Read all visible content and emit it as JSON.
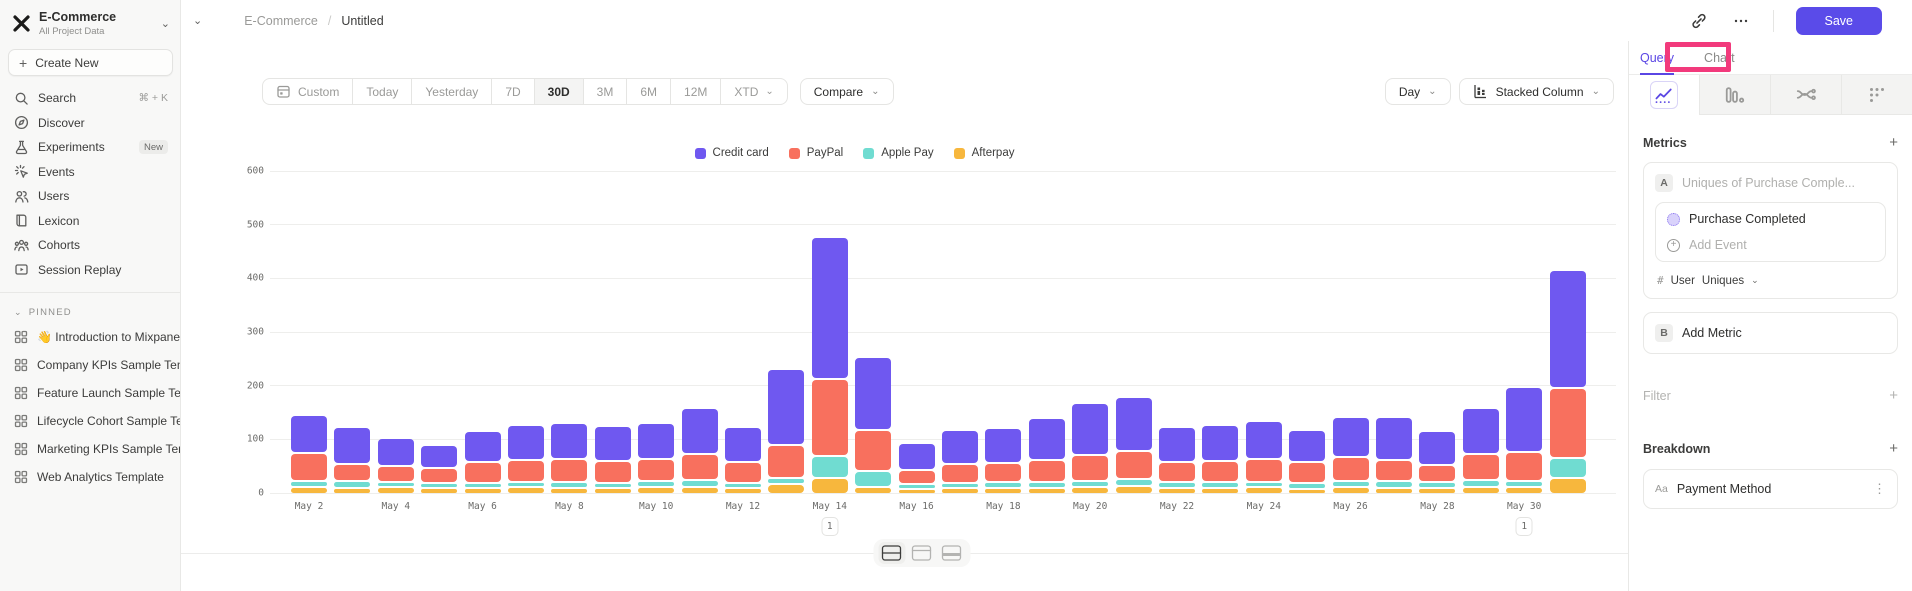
{
  "colors": {
    "accent": "#5a46e4",
    "save_button": "#5a4be9",
    "annotation_box": "#f23a7c",
    "credit_card": "#6f58f0",
    "paypal": "#f8705e",
    "apple_pay": "#70dcd1",
    "afterpay": "#f7b73d"
  },
  "sidebar": {
    "project": {
      "name": "E-Commerce",
      "subtitle": "All Project Data",
      "logo_icon": "mixpanel-logo",
      "chevron_icon": "chevron-down-icon"
    },
    "create_new_label": "Create New",
    "nav": [
      {
        "label": "Search",
        "icon": "search-icon",
        "shortcut": "⌘ + K"
      },
      {
        "label": "Discover",
        "icon": "compass-icon"
      },
      {
        "label": "Experiments",
        "icon": "flask-icon",
        "badge": "New"
      },
      {
        "label": "Events",
        "icon": "events-sparkle-icon"
      },
      {
        "label": "Users",
        "icon": "users-icon"
      },
      {
        "label": "Lexicon",
        "icon": "book-icon"
      },
      {
        "label": "Cohorts",
        "icon": "cohorts-icon"
      },
      {
        "label": "Session Replay",
        "icon": "session-replay-icon"
      }
    ],
    "pinned_header": "PINNED",
    "pinned": [
      {
        "label": "👋 Introduction to Mixpanel Bo",
        "icon": "board-grid-icon"
      },
      {
        "label": "Company KPIs Sample Templat",
        "icon": "board-grid-icon"
      },
      {
        "label": "Feature Launch Sample Templa",
        "icon": "board-grid-icon"
      },
      {
        "label": "Lifecycle Cohort Sample Temp",
        "icon": "board-grid-icon"
      },
      {
        "label": "Marketing KPIs Sample Templat",
        "icon": "board-grid-icon"
      },
      {
        "label": "Web Analytics Template",
        "icon": "board-grid-icon"
      }
    ]
  },
  "topbar": {
    "breadcrumb": {
      "root": "E-Commerce",
      "separator": "/",
      "current": "Untitled"
    },
    "actions": {
      "link_icon": "link-icon",
      "more_icon": "ellipsis-icon",
      "save_label": "Save"
    }
  },
  "toolbar": {
    "ranges": [
      {
        "label": "Custom",
        "icon": "calendar-icon"
      },
      {
        "label": "Today"
      },
      {
        "label": "Yesterday"
      },
      {
        "label": "7D"
      },
      {
        "label": "30D",
        "active": true
      },
      {
        "label": "3M"
      },
      {
        "label": "6M"
      },
      {
        "label": "12M"
      },
      {
        "label": "XTD",
        "dropdown": true
      }
    ],
    "compare_label": "Compare",
    "granularity_label": "Day",
    "chart_type_label": "Stacked Column",
    "chart_type_icon": "stacked-column-icon"
  },
  "layout_toggle_icons": [
    {
      "icon": "layout-split-rows-icon",
      "active": true
    },
    {
      "icon": "layout-top-bar-icon",
      "active": false
    },
    {
      "icon": "layout-bottom-half-icon",
      "active": false
    }
  ],
  "right_panel": {
    "tabs": [
      {
        "label": "Query",
        "active": true
      },
      {
        "label": "Chart",
        "active": false
      }
    ],
    "report_tabs": [
      {
        "icon": "insights-chart-icon",
        "active": true
      },
      {
        "icon": "funnels-bars-icon",
        "active": false
      },
      {
        "icon": "flows-icon",
        "active": false
      },
      {
        "icon": "retention-dots-icon",
        "active": false
      }
    ],
    "metrics": {
      "title": "Metrics",
      "add_icon": "plus-icon",
      "metric_a": {
        "badge": "A",
        "placeholder": "Uniques of Purchase Comple...",
        "event_name": "Purchase Completed",
        "event_icon": "event-dot-icon",
        "add_event_label": "Add Event",
        "count_symbol": "#",
        "entity": "User",
        "aggregation": "Uniques"
      },
      "metric_b": {
        "badge": "B",
        "label": "Add Metric"
      }
    },
    "filter": {
      "title": "Filter",
      "add_icon": "plus-icon"
    },
    "breakdown": {
      "title": "Breakdown",
      "add_icon": "plus-icon",
      "item": {
        "badge": "Aa",
        "label": "Payment Method",
        "menu_icon": "kebab-icon"
      }
    }
  },
  "chart_data": {
    "type": "bar",
    "stacked": true,
    "title": "",
    "xlabel": "",
    "ylabel": "",
    "ylim": [
      0,
      600
    ],
    "yticks": [
      0,
      100,
      200,
      300,
      400,
      500,
      600
    ],
    "grid": true,
    "legend_position": "top",
    "categories": [
      "May 2",
      "May 3",
      "May 4",
      "May 5",
      "May 6",
      "May 7",
      "May 8",
      "May 9",
      "May 10",
      "May 11",
      "May 12",
      "May 13",
      "May 14",
      "May 15",
      "May 16",
      "May 17",
      "May 18",
      "May 19",
      "May 20",
      "May 21",
      "May 22",
      "May 23",
      "May 24",
      "May 25",
      "May 26",
      "May 27",
      "May 28",
      "May 29",
      "May 30",
      "May 31"
    ],
    "x_tick_labels_shown": [
      "May 2",
      "May 4",
      "May 6",
      "May 8",
      "May 10",
      "May 12",
      "May 14",
      "May 16",
      "May 18",
      "May 20",
      "May 22",
      "May 24",
      "May 26",
      "May 28",
      "May 30"
    ],
    "stack_order_bottom_to_top": [
      "Afterpay",
      "Apple Pay",
      "PayPal",
      "Credit card"
    ],
    "series": [
      {
        "name": "Credit card",
        "color": "#6f58f0",
        "values": [
          71,
          68,
          52,
          42,
          58,
          65,
          66,
          64,
          67,
          85,
          65,
          140,
          263,
          135,
          51,
          63,
          64,
          77,
          96,
          100,
          64,
          66,
          70,
          60,
          75,
          79,
          63,
          85,
          119,
          220
        ]
      },
      {
        "name": "PayPal",
        "color": "#f8705e",
        "values": [
          52,
          32,
          30,
          28,
          38,
          40,
          42,
          40,
          41,
          48,
          38,
          62,
          143,
          75,
          25,
          35,
          36,
          42,
          48,
          52,
          38,
          40,
          42,
          38,
          44,
          40,
          32,
          48,
          55,
          130
        ]
      },
      {
        "name": "Apple Pay",
        "color": "#70dcd1",
        "values": [
          9,
          11,
          8,
          9,
          8,
          9,
          10,
          9,
          10,
          11,
          9,
          10,
          40,
          30,
          8,
          9,
          10,
          9,
          10,
          12,
          9,
          10,
          9,
          10,
          10,
          12,
          9,
          11,
          10,
          35
        ]
      },
      {
        "name": "Afterpay",
        "color": "#f7b73d",
        "values": [
          13,
          11,
          12,
          10,
          11,
          12,
          11,
          10,
          12,
          13,
          10,
          18,
          30,
          12,
          9,
          10,
          10,
          11,
          12,
          14,
          11,
          10,
          12,
          9,
          12,
          10,
          11,
          13,
          12,
          30
        ]
      }
    ],
    "annotations": [
      {
        "category": "May 14",
        "index": 12,
        "label": "1"
      },
      {
        "category": "May 30",
        "index": 28,
        "label": "1"
      }
    ]
  }
}
